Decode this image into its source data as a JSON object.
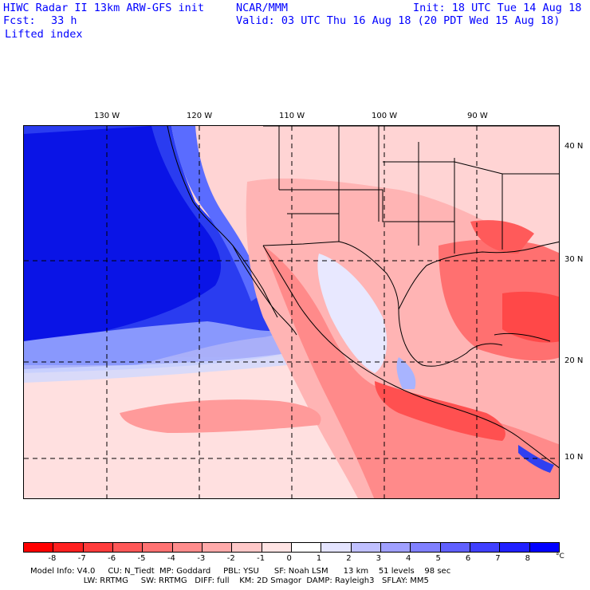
{
  "header": {
    "title": "HIWC Radar II 13km ARW-GFS init",
    "org": "NCAR/MMM",
    "fcst_label": "Fcst:",
    "fcst_value": "33 h",
    "init": "Init: 18 UTC Tue 14 Aug 18",
    "valid": "Valid: 03 UTC Thu 16 Aug 18 (20 PDT Wed 15 Aug 18)",
    "field": "Lifted index"
  },
  "longitudes": [
    "130 W",
    "120 W",
    "110 W",
    "100 W",
    "90 W"
  ],
  "latitudes": [
    "40 N",
    "30 N",
    "20 N",
    "10 N"
  ],
  "colorbar": {
    "ticks": [
      "-8",
      "-7",
      "-6",
      "-5",
      "-4",
      "-3",
      "-2",
      "-1",
      "0",
      "1",
      "2",
      "3",
      "4",
      "5",
      "6",
      "7",
      "8"
    ],
    "unit": "°C",
    "colors": [
      "#ff0000",
      "#ff2020",
      "#ff3c3c",
      "#ff5858",
      "#ff7272",
      "#ff8c8c",
      "#ffaaaa",
      "#ffc8c8",
      "#ffe4e4",
      "#ffffff",
      "#e4e4ff",
      "#c0c0ff",
      "#a0a0ff",
      "#8080ff",
      "#6060ff",
      "#4040ff",
      "#2020ff",
      "#0000ff"
    ]
  },
  "footer": {
    "line1": "Model Info: V4.0     CU: N_Tiedt  MP: Goddard     PBL: YSU      SF: Noah LSM      13 km    51 levels    98 sec",
    "line2": "                     LW: RRTMG     SW: RRTMG   DIFF: full    KM: 2D Smagor  DAMP: Rayleigh3   SFLAY: MM5"
  }
}
